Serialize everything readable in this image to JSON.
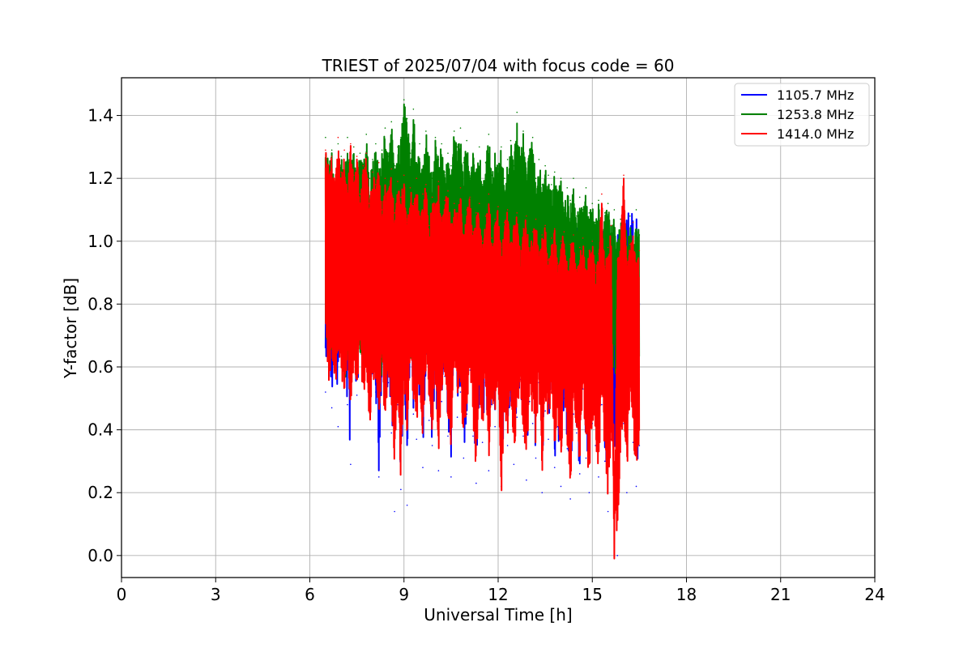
{
  "chart_data": {
    "type": "line",
    "title": "TRIEST of 2025/07/04 with focus code = 60",
    "xlabel": "Universal Time [h]",
    "ylabel": "Y-factor [dB]",
    "xlim": [
      0,
      24
    ],
    "ylim": [
      -0.07,
      1.52
    ],
    "xticks": [
      0,
      3,
      6,
      9,
      12,
      15,
      18,
      21,
      24
    ],
    "yticks": [
      0.0,
      0.2,
      0.4,
      0.6,
      0.8,
      1.0,
      1.2,
      1.4
    ],
    "ytick_labels": [
      "0.0",
      "0.2",
      "0.4",
      "0.6",
      "0.8",
      "1.0",
      "1.2",
      "1.4"
    ],
    "grid": true,
    "legend_position": "top-right",
    "series": [
      {
        "name": "1105.7 MHz",
        "color": "#0000ff",
        "x": [
          6.5,
          6.6,
          6.7,
          6.8,
          6.9,
          7.0,
          7.1,
          7.2,
          7.3,
          7.4,
          7.5,
          7.6,
          7.7,
          7.8,
          7.9,
          8.0,
          8.1,
          8.2,
          8.3,
          8.4,
          8.5,
          8.6,
          8.7,
          8.8,
          8.9,
          9.0,
          9.1,
          9.2,
          9.3,
          9.4,
          9.5,
          9.6,
          9.7,
          9.8,
          9.9,
          10.0,
          10.1,
          10.2,
          10.3,
          10.4,
          10.5,
          10.6,
          10.7,
          10.8,
          10.9,
          11.0,
          11.1,
          11.2,
          11.3,
          11.4,
          11.5,
          11.6,
          11.7,
          11.8,
          11.9,
          12.0,
          12.1,
          12.2,
          12.3,
          12.4,
          12.5,
          12.6,
          12.7,
          12.8,
          12.9,
          13.0,
          13.1,
          13.2,
          13.3,
          13.4,
          13.5,
          13.6,
          13.7,
          13.8,
          13.9,
          14.0,
          14.1,
          14.2,
          14.3,
          14.4,
          14.5,
          14.6,
          14.7,
          14.8,
          14.9,
          15.0,
          15.1,
          15.2,
          15.3,
          15.4,
          15.5,
          15.6,
          15.7,
          15.8,
          15.9,
          16.0,
          16.1,
          16.2,
          16.3,
          16.4,
          16.5
        ],
        "y": [
          0.52,
          0.68,
          0.47,
          0.62,
          0.41,
          0.74,
          0.55,
          0.48,
          0.29,
          0.63,
          0.51,
          0.86,
          0.6,
          0.66,
          0.49,
          0.58,
          0.52,
          0.25,
          0.61,
          0.47,
          0.55,
          0.39,
          0.14,
          0.48,
          0.21,
          0.58,
          0.16,
          0.69,
          0.45,
          0.37,
          0.52,
          0.28,
          0.61,
          0.43,
          0.35,
          0.55,
          0.27,
          0.49,
          0.57,
          0.38,
          0.25,
          0.63,
          0.44,
          0.52,
          0.31,
          0.45,
          0.59,
          0.38,
          0.23,
          0.51,
          0.36,
          0.55,
          0.27,
          0.48,
          0.41,
          0.56,
          0.22,
          0.47,
          0.35,
          0.52,
          0.29,
          0.44,
          0.56,
          0.38,
          0.24,
          0.49,
          0.42,
          0.31,
          0.55,
          0.2,
          0.46,
          0.37,
          0.52,
          0.28,
          0.41,
          0.22,
          0.5,
          0.34,
          0.18,
          0.45,
          0.39,
          0.26,
          0.53,
          0.31,
          0.2,
          0.42,
          0.35,
          0.25,
          0.48,
          0.3,
          0.14,
          0.37,
          0.27,
          0.0,
          0.33,
          0.42,
          0.2,
          0.54,
          0.36,
          0.22,
          0.35
        ]
      },
      {
        "name": "1253.8 MHz",
        "color": "#008000",
        "x": [
          6.5,
          6.6,
          6.7,
          6.8,
          6.9,
          7.0,
          7.1,
          7.2,
          7.3,
          7.4,
          7.5,
          7.6,
          7.7,
          7.8,
          7.9,
          8.0,
          8.1,
          8.2,
          8.3,
          8.4,
          8.5,
          8.6,
          8.7,
          8.8,
          8.9,
          9.0,
          9.1,
          9.2,
          9.3,
          9.4,
          9.5,
          9.6,
          9.7,
          9.8,
          9.9,
          10.0,
          10.1,
          10.2,
          10.3,
          10.4,
          10.5,
          10.6,
          10.7,
          10.8,
          10.9,
          11.0,
          11.1,
          11.2,
          11.3,
          11.4,
          11.5,
          11.6,
          11.7,
          11.8,
          11.9,
          12.0,
          12.1,
          12.2,
          12.3,
          12.4,
          12.5,
          12.6,
          12.7,
          12.8,
          12.9,
          13.0,
          13.1,
          13.2,
          13.3,
          13.4,
          13.5,
          13.6,
          13.7,
          13.8,
          13.9,
          14.0,
          14.1,
          14.2,
          14.3,
          14.4,
          14.5,
          14.6,
          14.7,
          14.8,
          14.9,
          15.0,
          15.1,
          15.2,
          15.3,
          15.4,
          15.5,
          15.6,
          15.7,
          15.8,
          15.9,
          16.0,
          16.1,
          16.2,
          16.3,
          16.4,
          16.5
        ],
        "y": [
          1.33,
          1.24,
          1.29,
          1.18,
          1.31,
          1.27,
          1.21,
          1.33,
          1.25,
          1.3,
          1.22,
          1.28,
          1.24,
          1.34,
          1.2,
          1.26,
          1.31,
          1.23,
          1.29,
          1.36,
          1.27,
          1.38,
          1.24,
          1.3,
          1.33,
          1.45,
          1.39,
          1.28,
          1.42,
          1.25,
          1.31,
          1.23,
          1.35,
          1.27,
          1.2,
          1.33,
          1.26,
          1.31,
          1.22,
          1.28,
          1.24,
          1.35,
          1.3,
          1.36,
          1.25,
          1.32,
          1.2,
          1.28,
          1.22,
          1.3,
          1.18,
          1.25,
          1.34,
          1.21,
          1.28,
          1.23,
          1.3,
          1.2,
          1.26,
          1.32,
          1.24,
          1.41,
          1.27,
          1.35,
          1.22,
          1.29,
          1.33,
          1.2,
          1.26,
          1.18,
          1.24,
          1.21,
          1.18,
          1.22,
          1.15,
          1.2,
          1.1,
          1.17,
          1.13,
          1.2,
          1.08,
          1.14,
          1.1,
          1.17,
          1.09,
          1.12,
          1.06,
          1.13,
          1.03,
          1.09,
          1.12,
          1.05,
          1.1,
          0.99,
          1.07,
          1.13,
          1.02,
          1.08,
          1.0,
          1.1,
          1.02
        ]
      },
      {
        "name": "1414.0 MHz",
        "color": "#ff0000",
        "x": [
          6.5,
          6.6,
          6.7,
          6.8,
          6.9,
          7.0,
          7.1,
          7.2,
          7.3,
          7.4,
          7.5,
          7.6,
          7.7,
          7.8,
          7.9,
          8.0,
          8.1,
          8.2,
          8.3,
          8.4,
          8.5,
          8.6,
          8.7,
          8.8,
          8.9,
          9.0,
          9.1,
          9.2,
          9.3,
          9.4,
          9.5,
          9.6,
          9.7,
          9.8,
          9.9,
          10.0,
          10.1,
          10.2,
          10.3,
          10.4,
          10.5,
          10.6,
          10.7,
          10.8,
          10.9,
          11.0,
          11.1,
          11.2,
          11.3,
          11.4,
          11.5,
          11.6,
          11.7,
          11.8,
          11.9,
          12.0,
          12.1,
          12.2,
          12.3,
          12.4,
          12.5,
          12.6,
          12.7,
          12.8,
          12.9,
          13.0,
          13.1,
          13.2,
          13.3,
          13.4,
          13.5,
          13.6,
          13.7,
          13.8,
          13.9,
          14.0,
          14.1,
          14.2,
          14.3,
          14.4,
          14.5,
          14.6,
          14.7,
          14.8,
          14.9,
          15.0,
          15.1,
          15.2,
          15.3,
          15.4,
          15.5,
          15.6,
          15.7,
          15.8,
          15.9,
          16.0,
          16.1,
          16.2,
          16.3,
          16.4,
          16.5
        ],
        "y": [
          1.29,
          1.24,
          1.27,
          1.18,
          1.33,
          1.22,
          1.29,
          1.16,
          1.31,
          1.21,
          1.27,
          1.15,
          1.24,
          1.28,
          1.12,
          1.22,
          1.18,
          1.25,
          1.1,
          1.2,
          1.16,
          1.23,
          1.09,
          1.19,
          1.14,
          1.21,
          1.06,
          1.17,
          1.12,
          1.2,
          1.08,
          1.15,
          1.18,
          1.05,
          1.14,
          1.11,
          1.19,
          1.06,
          1.13,
          1.16,
          1.04,
          1.12,
          1.09,
          1.17,
          1.02,
          1.1,
          1.14,
          1.03,
          1.09,
          1.12,
          1.0,
          1.08,
          1.15,
          1.01,
          1.07,
          1.11,
          0.98,
          1.06,
          1.1,
          0.99,
          1.05,
          1.09,
          0.97,
          1.04,
          1.08,
          0.96,
          1.03,
          1.07,
          0.95,
          1.02,
          1.05,
          0.94,
          1.01,
          1.04,
          0.93,
          1.0,
          1.03,
          0.92,
          0.99,
          1.02,
          0.91,
          0.98,
          1.01,
          0.9,
          0.97,
          1.0,
          0.9,
          0.96,
          1.15,
          0.92,
          0.98,
          1.05,
          0.0,
          0.94,
          1.0,
          1.21,
          0.93,
          0.99,
          1.06,
          0.92,
          0.97
        ],
        "y_low": [
          0.72,
          0.55,
          0.62,
          0.5,
          0.66,
          0.58,
          0.49,
          0.64,
          0.43,
          0.6,
          0.52,
          0.68,
          0.47,
          0.61,
          0.39,
          0.55,
          0.5,
          0.45,
          0.58,
          0.42,
          0.53,
          0.47,
          0.28,
          0.5,
          0.23,
          0.55,
          0.37,
          0.61,
          0.48,
          0.41,
          0.53,
          0.32,
          0.6,
          0.45,
          0.38,
          0.56,
          0.31,
          0.5,
          0.58,
          0.4,
          0.3,
          0.62,
          0.46,
          0.53,
          0.34,
          0.47,
          0.57,
          0.4,
          0.27,
          0.52,
          0.39,
          0.55,
          0.3,
          0.48,
          0.43,
          0.56,
          0.16,
          0.48,
          0.37,
          0.52,
          0.31,
          0.45,
          0.55,
          0.39,
          0.27,
          0.5,
          0.44,
          0.33,
          0.54,
          0.24,
          0.47,
          0.38,
          0.52,
          0.3,
          0.43,
          0.25,
          0.5,
          0.36,
          0.21,
          0.45,
          0.4,
          0.28,
          0.52,
          0.33,
          0.23,
          0.43,
          0.36,
          0.27,
          0.48,
          0.31,
          0.18,
          0.38,
          0.29,
          0.0,
          0.35,
          0.42,
          0.24,
          0.52,
          0.37,
          0.25,
          0.38
        ]
      }
    ]
  }
}
